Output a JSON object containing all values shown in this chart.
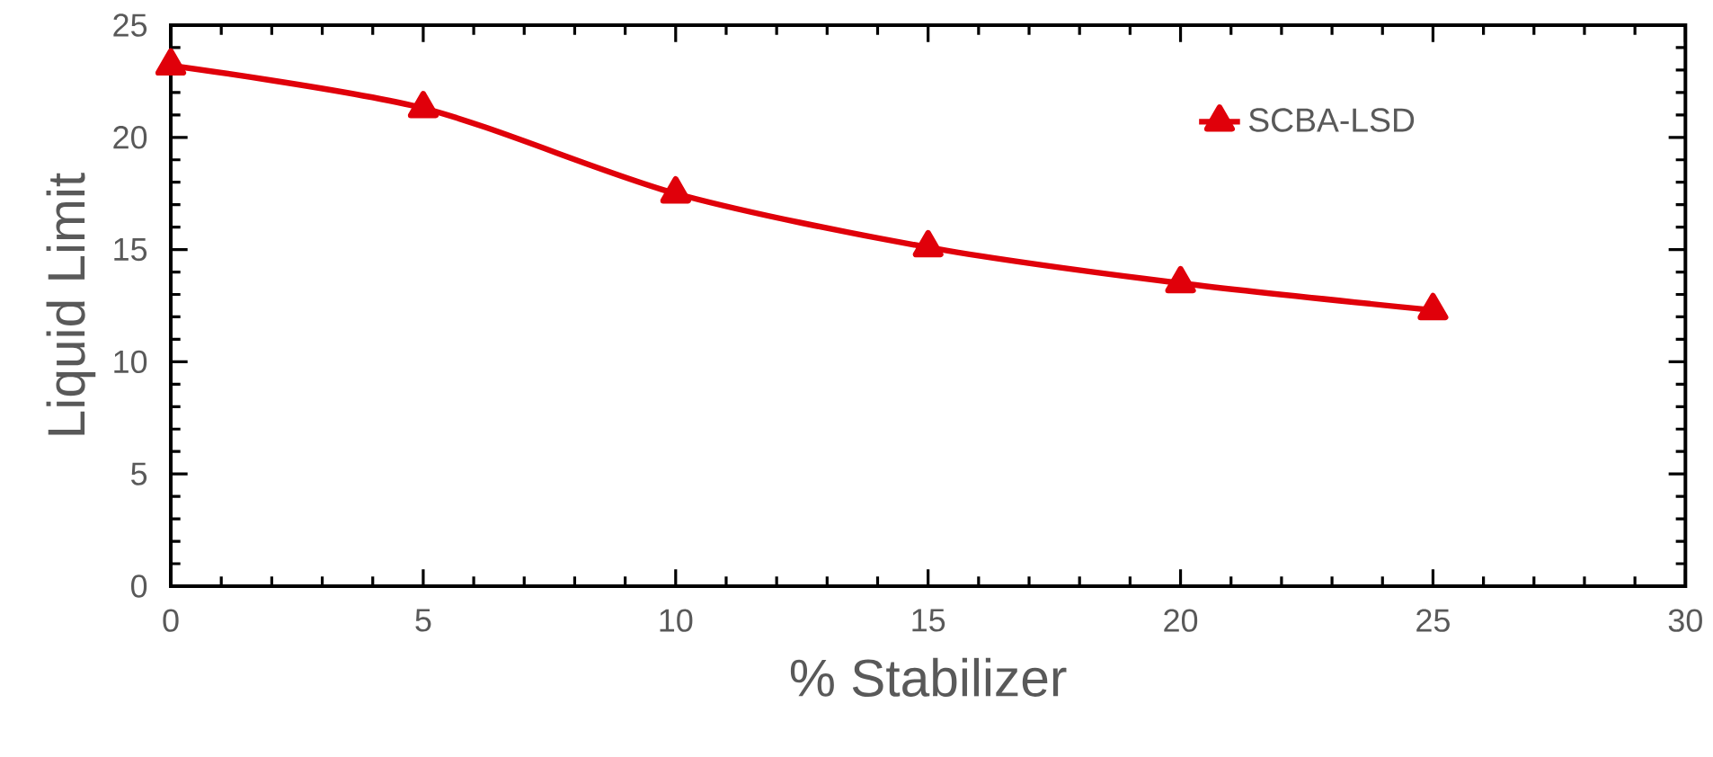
{
  "chart_data": {
    "type": "line",
    "xlabel": "% Stabilizer",
    "ylabel": "Liquid Limit",
    "x": [
      0,
      5,
      10,
      15,
      20,
      25
    ],
    "series": [
      {
        "name": "SCBA-LSD",
        "color": "#e0000a",
        "values": [
          23.2,
          21.3,
          17.5,
          15.1,
          13.5,
          12.3
        ]
      }
    ],
    "xlim": [
      0,
      30
    ],
    "ylim": [
      0,
      25
    ],
    "xticks": [
      0,
      5,
      10,
      15,
      20,
      25,
      30
    ],
    "yticks": [
      0,
      5,
      10,
      15,
      20,
      25
    ],
    "grid": false,
    "legend": "top right",
    "marker": "triangle",
    "line_style": "solid"
  }
}
